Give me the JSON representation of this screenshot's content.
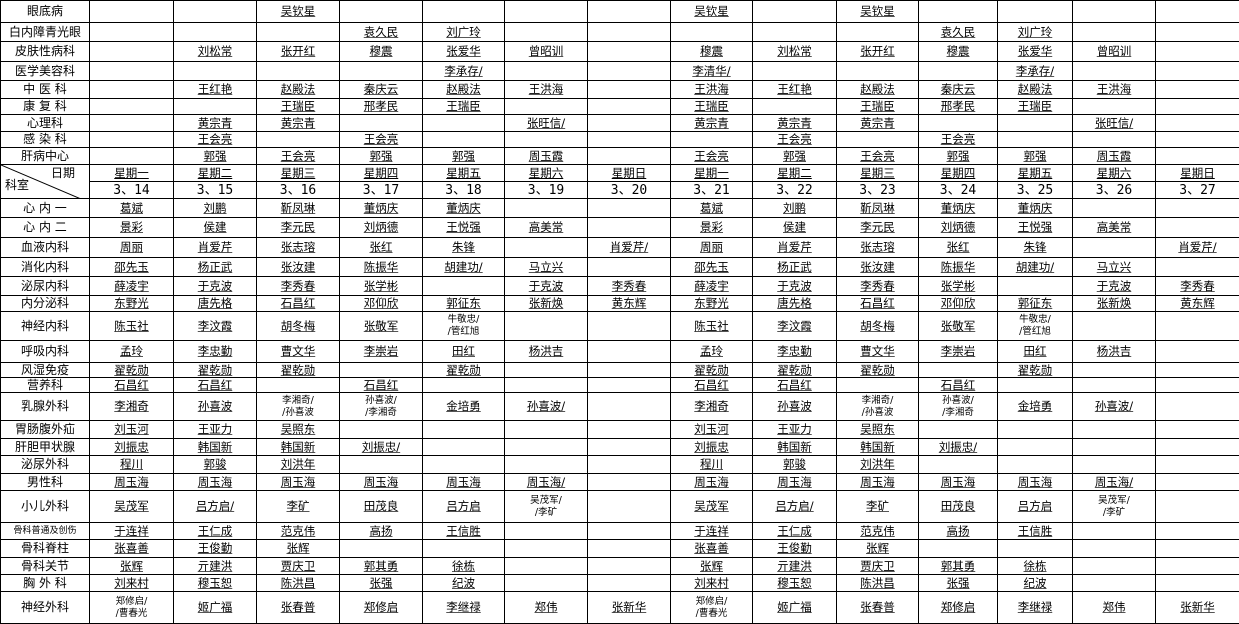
{
  "header": {
    "corner_date_label": "日期",
    "corner_dept_label": "科室",
    "weekdays": [
      "星期一",
      "星期二",
      "星期三",
      "星期四",
      "星期五",
      "星期六",
      "星期日",
      "星期一",
      "星期二",
      "星期三",
      "星期四",
      "星期五",
      "星期六",
      "星期日"
    ],
    "dates": [
      "3、14",
      "3、15",
      "3、16",
      "3、17",
      "3、18",
      "3、19",
      "3、20",
      "3、21",
      "3、22",
      "3、23",
      "3、24",
      "3、25",
      "3、26",
      "3、27"
    ]
  },
  "top_rows": [
    {
      "dept": "眼底病",
      "cells": [
        "",
        "",
        "吴钦星",
        "",
        "",
        "",
        "",
        "吴钦星",
        "",
        "吴钦星",
        "",
        "",
        "",
        ""
      ]
    },
    {
      "dept": "白内障青光眼",
      "cells": [
        "",
        "",
        "",
        "袁久民",
        "刘广玲",
        "",
        "",
        "",
        "",
        "",
        "袁久民",
        "刘广玲",
        "",
        ""
      ]
    },
    {
      "dept": "皮肤性病科",
      "cells": [
        "",
        "刘松常",
        "张开红",
        "穆震",
        "张爱华",
        "曾昭训",
        "",
        "穆震",
        "刘松常",
        "张开红",
        "穆震",
        "张爱华",
        "曾昭训",
        ""
      ]
    },
    {
      "dept": "医学美容科",
      "cells": [
        "",
        "",
        "",
        "",
        "李承存/",
        "",
        "",
        "李清华/",
        "",
        "",
        "",
        "李承存/",
        "",
        ""
      ]
    },
    {
      "dept": "中 医 科",
      "cells": [
        "",
        "王红艳",
        "赵殿法",
        "秦庆云",
        "赵殿法",
        "王洪海",
        "",
        "王洪海",
        "王红艳",
        "赵殿法",
        "秦庆云",
        "赵殿法",
        "王洪海",
        ""
      ]
    },
    {
      "dept": "康 复 科",
      "cells": [
        "",
        "",
        "王瑞臣",
        "邢孝民",
        "王瑞臣",
        "",
        "",
        "王瑞臣",
        "",
        "王瑞臣",
        "邢孝民",
        "王瑞臣",
        "",
        ""
      ]
    },
    {
      "dept": "心理科",
      "cells": [
        "",
        "黄宗青",
        "黄宗青",
        "",
        "",
        "张旺信/",
        "",
        "黄宗青",
        "黄宗青",
        "黄宗青",
        "",
        "",
        "张旺信/",
        ""
      ]
    },
    {
      "dept": "感 染 科",
      "cells": [
        "",
        "王会亮",
        "",
        "王会亮",
        "",
        "",
        "",
        "",
        "王会亮",
        "",
        "王会亮",
        "",
        "",
        ""
      ]
    },
    {
      "dept": "肝病中心",
      "cells": [
        "",
        "郭强",
        "王会亮",
        "郭强",
        "郭强",
        "周玉霞",
        "",
        "王会亮",
        "郭强",
        "王会亮",
        "郭强",
        "郭强",
        "周玉霞",
        ""
      ]
    }
  ],
  "rows": [
    {
      "dept": "心 内 一",
      "cells": [
        "葛斌",
        "刘鹏",
        "靳凤琳",
        "董炳庆",
        "董炳庆",
        "",
        "",
        "葛斌",
        "刘鹏",
        "靳凤琳",
        "董炳庆",
        "董炳庆",
        "",
        ""
      ]
    },
    {
      "dept": "心 内 二",
      "cells": [
        "景彩",
        "侯建",
        "李元民",
        "刘炳德",
        "王悦强",
        "高美常",
        "",
        "景彩",
        "侯建",
        "李元民",
        "刘炳德",
        "王悦强",
        "高美常",
        ""
      ]
    },
    {
      "dept": "血液内科",
      "cells": [
        "周丽",
        "肖爱芹",
        "张志瑢",
        "张红",
        "朱锋",
        "",
        "肖爱芹/",
        "周丽",
        "肖爱芹",
        "张志瑢",
        "张红",
        "朱锋",
        "",
        "肖爱芹/"
      ]
    },
    {
      "dept": "消化内科",
      "cells": [
        "邵先玉",
        "杨正武",
        "张汝建",
        "陈振华",
        "胡建功/",
        "马立兴",
        "",
        "邵先玉",
        "杨正武",
        "张汝建",
        "陈振华",
        "胡建功/",
        "马立兴",
        ""
      ]
    },
    {
      "dept": "泌尿内科",
      "cells": [
        "薛凌宇",
        "于克波",
        "李秀春",
        "张学彬",
        "",
        "于克波",
        "李秀春",
        "薛凌宇",
        "于克波",
        "李秀春",
        "张学彬",
        "",
        "于克波",
        "李秀春"
      ]
    },
    {
      "dept": "内分泌科",
      "cells": [
        "东野光",
        "唐先格",
        "石昌红",
        "邓仰欣",
        "郭征东",
        "张新焕",
        "黄东辉",
        "东野光",
        "唐先格",
        "石昌红",
        "邓仰欣",
        "郭征东",
        "张新焕",
        "黄东辉"
      ]
    },
    {
      "dept": "神经内科",
      "cells": [
        "陈玉社",
        "李汶霞",
        "胡冬梅",
        "张敬军",
        "牛敬忠/\n/管红旭",
        "",
        "",
        "陈玉社",
        "李汶霞",
        "胡冬梅",
        "张敬军",
        "牛敬忠/\n/管红旭",
        "",
        ""
      ]
    },
    {
      "dept": "呼吸内科",
      "cells": [
        "孟玲",
        "李忠勤",
        "曹文华",
        "李崇岩",
        "田红",
        "杨洪吉",
        "",
        "孟玲",
        "李忠勤",
        "曹文华",
        "李崇岩",
        "田红",
        "杨洪吉",
        ""
      ]
    },
    {
      "dept": "风湿免疫",
      "cells": [
        "翟乾勋",
        "翟乾勋",
        "翟乾勋",
        "",
        "翟乾勋",
        "",
        "",
        "翟乾勋",
        "翟乾勋",
        "翟乾勋",
        "",
        "翟乾勋",
        "",
        ""
      ]
    },
    {
      "dept": "营养科",
      "cells": [
        "石昌红",
        "石昌红",
        "",
        "石昌红",
        "",
        "",
        "",
        "石昌红",
        "石昌红",
        "",
        "石昌红",
        "",
        "",
        ""
      ]
    },
    {
      "dept": "乳腺外科",
      "cells": [
        "李湘奇",
        "孙喜波",
        "李湘奇/\n/孙喜波",
        "孙喜波/\n/李湘奇",
        "金培勇",
        "孙喜波/",
        "",
        "李湘奇",
        "孙喜波",
        "李湘奇/\n/孙喜波",
        "孙喜波/\n/李湘奇",
        "金培勇",
        "孙喜波/",
        ""
      ]
    },
    {
      "dept": "胃肠腹外疝",
      "cells": [
        "刘玉河",
        "王亚力",
        "吴照东",
        "",
        "",
        "",
        "",
        "刘玉河",
        "王亚力",
        "吴照东",
        "",
        "",
        "",
        ""
      ]
    },
    {
      "dept": "肝胆甲状腺",
      "cells": [
        "刘振忠",
        "韩国新",
        "韩国新",
        "刘振忠/",
        "",
        "",
        "",
        "刘振忠",
        "韩国新",
        "韩国新",
        "刘振忠/",
        "",
        "",
        ""
      ]
    },
    {
      "dept": "泌尿外科",
      "cells": [
        "程川",
        "郭骏",
        "刘洪年",
        "",
        "",
        "",
        "",
        "程川",
        "郭骏",
        "刘洪年",
        "",
        "",
        "",
        ""
      ]
    },
    {
      "dept": "男性科",
      "cells": [
        "周玉海",
        "周玉海",
        "周玉海",
        "周玉海",
        "周玉海",
        "周玉海/",
        "",
        "周玉海",
        "周玉海",
        "周玉海",
        "周玉海",
        "周玉海",
        "周玉海/",
        ""
      ]
    },
    {
      "dept": "小儿外科",
      "cells": [
        "吴茂军",
        "吕方启/",
        "李矿",
        "田茂良",
        "吕方启",
        "吴茂军/\n/李矿",
        "",
        "吴茂军",
        "吕方启/",
        "李矿",
        "田茂良",
        "吕方启",
        "吴茂军/\n/李矿",
        ""
      ]
    },
    {
      "dept": "骨科普通及创伤",
      "cells": [
        "于连祥",
        "王仁成",
        "范克伟",
        "高扬",
        "王信胜",
        "",
        "",
        "于连祥",
        "王仁成",
        "范克伟",
        "高扬",
        "王信胜",
        "",
        ""
      ]
    },
    {
      "dept": "骨科脊柱",
      "cells": [
        "张喜善",
        "王俊勤",
        "张辉",
        "",
        "",
        "",
        "",
        "张喜善",
        "王俊勤",
        "张辉",
        "",
        "",
        "",
        ""
      ]
    },
    {
      "dept": "骨科关节",
      "cells": [
        "张辉",
        "亓建洪",
        "贾庆卫",
        "郭其勇",
        "徐栋",
        "",
        "",
        "张辉",
        "亓建洪",
        "贾庆卫",
        "郭其勇",
        "徐栋",
        "",
        ""
      ]
    },
    {
      "dept": "胸 外 科",
      "cells": [
        "刘来村",
        "穆玉恕",
        "陈洪昌",
        "张强",
        "纪波",
        "",
        "",
        "刘来村",
        "穆玉恕",
        "陈洪昌",
        "张强",
        "纪波",
        "",
        ""
      ]
    },
    {
      "dept": "神经外科",
      "cells": [
        "郑修启/\n/曹春光",
        "姬广福",
        "张春普",
        "郑修启",
        "李继禄",
        "郑伟",
        "张新华",
        "郑修启/\n/曹春光",
        "姬广福",
        "张春普",
        "郑修启",
        "李继禄",
        "郑伟",
        "张新华"
      ]
    }
  ]
}
